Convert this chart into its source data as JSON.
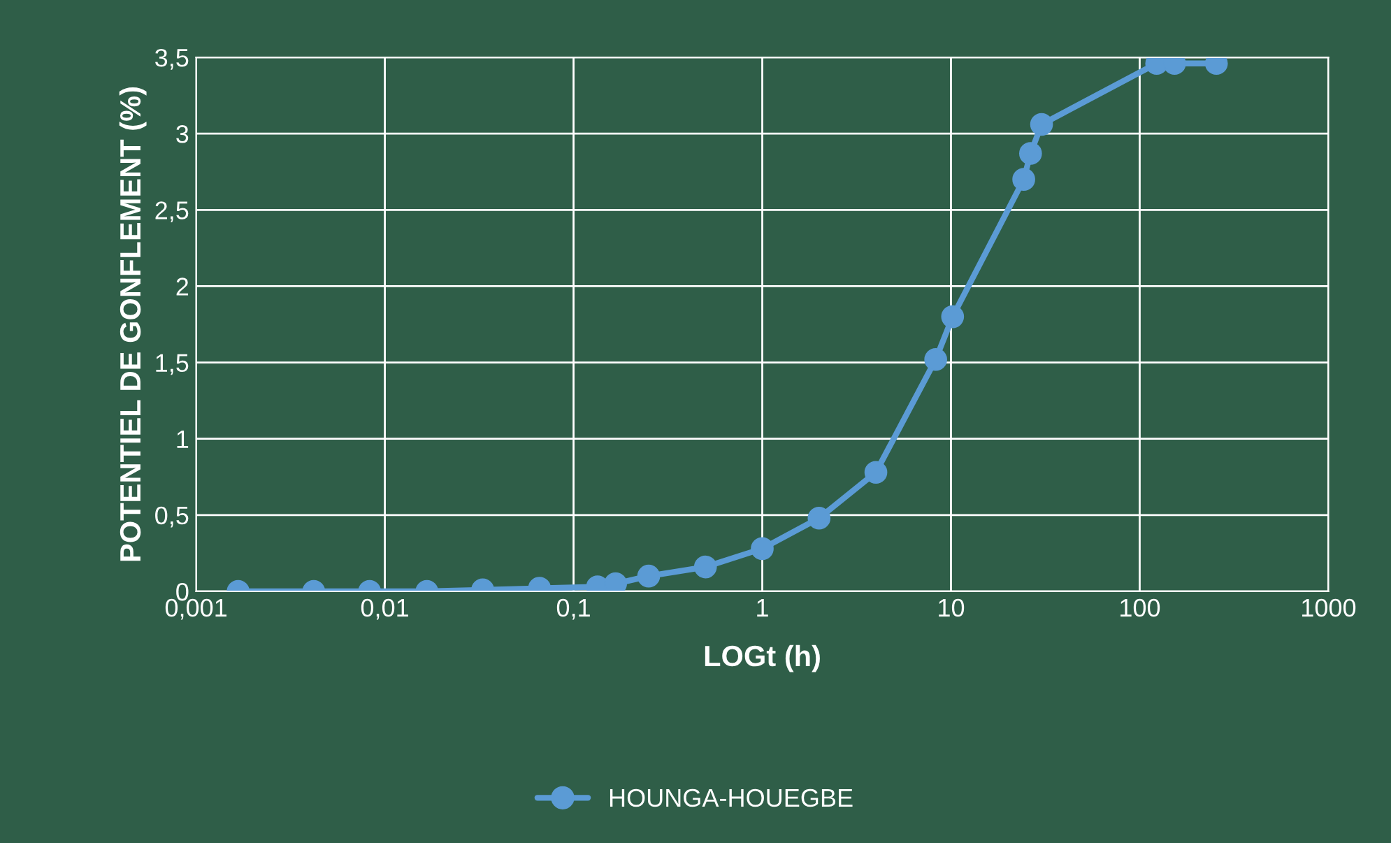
{
  "chart_data": {
    "type": "line",
    "xlabel": "LOGt (h)",
    "ylabel": "POTENTIEL DE GONFLEMENT (%)",
    "log": "x",
    "xlim": [
      0.001,
      1000
    ],
    "xticks": [
      {
        "value": 0.001,
        "label": "0,001"
      },
      {
        "value": 0.01,
        "label": "0,01"
      },
      {
        "value": 0.1,
        "label": "0,1"
      },
      {
        "value": 1,
        "label": "1"
      },
      {
        "value": 10,
        "label": "10"
      },
      {
        "value": 100,
        "label": "100"
      },
      {
        "value": 1000,
        "label": "1000"
      }
    ],
    "ylim": [
      0,
      3.5
    ],
    "yticks": [
      0,
      {
        "value": 0.5,
        "label": "0,5"
      },
      1,
      {
        "value": 1.5,
        "label": "1,5"
      },
      2,
      {
        "value": 2.5,
        "label": "2,5"
      },
      3,
      {
        "value": 3.5,
        "label": "3,5"
      }
    ],
    "grid": true,
    "legend": "bottom",
    "marker": "circle",
    "line_style": "solid",
    "x": [
      0.00167,
      0.0042,
      0.0083,
      0.0167,
      0.033,
      0.066,
      0.134,
      0.167,
      0.25,
      0.5,
      1,
      2,
      4,
      8.3,
      10.2,
      24.3,
      26.4,
      30.2,
      123,
      153,
      255
    ],
    "series": [
      {
        "name": "HOUNGA-HOUEGBE",
        "color": "#5b9bd5",
        "values": [
          0,
          0,
          0,
          0,
          0.01,
          0.02,
          0.03,
          0.05,
          0.1,
          0.16,
          0.28,
          0.48,
          0.78,
          1.52,
          1.8,
          2.7,
          2.87,
          3.06,
          3.46,
          3.46,
          3.46
        ]
      }
    ]
  }
}
